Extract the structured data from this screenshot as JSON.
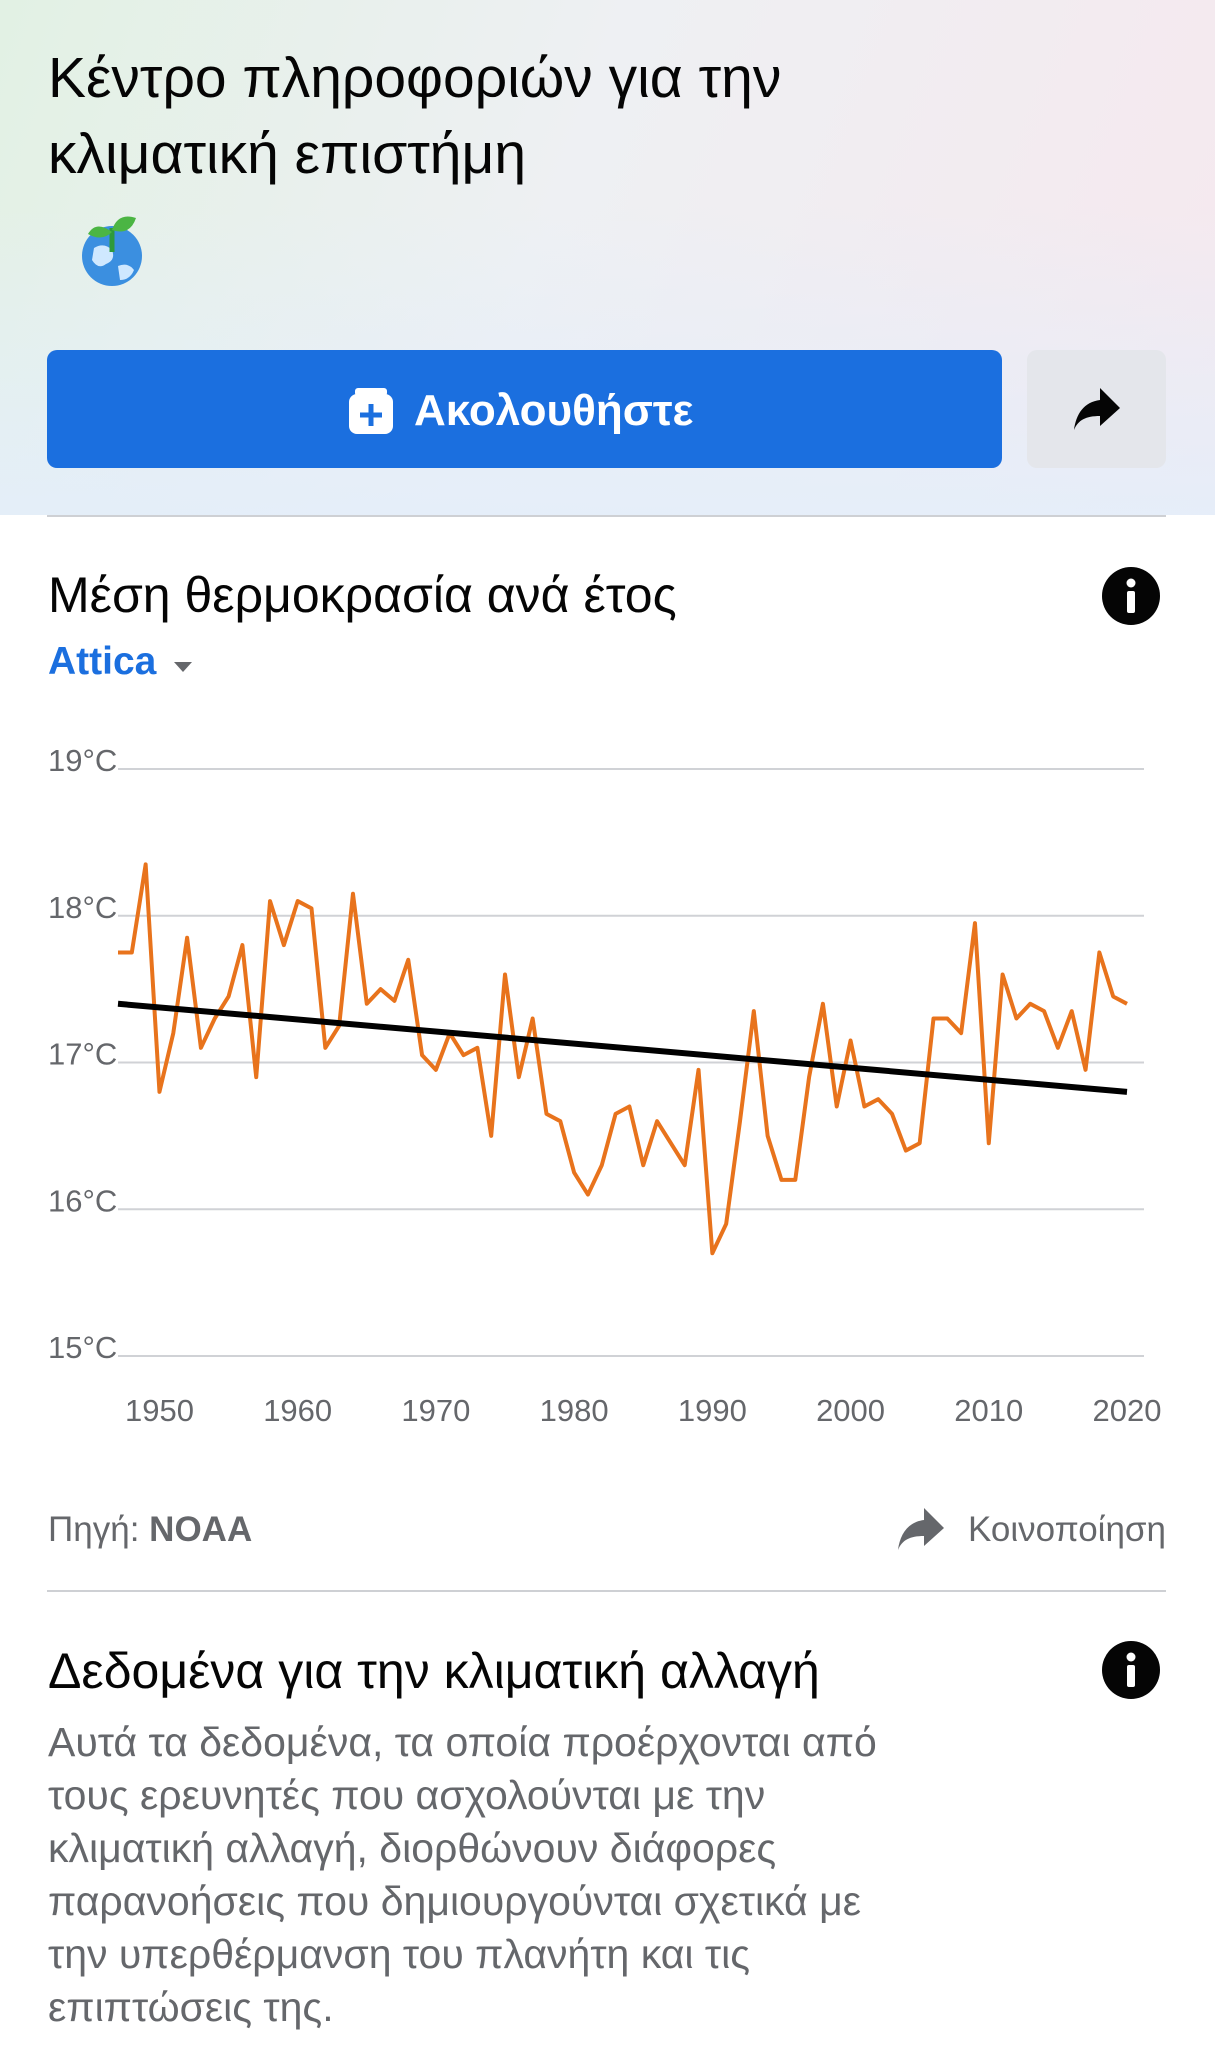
{
  "header": {
    "title_lines": [
      "Κέντρο πληροφοριών για την",
      "κλιματική επιστήμη"
    ],
    "follow_button": "Ακολουθήστε"
  },
  "card": {
    "title": "Μέση θερμοκρασία ανά έτος",
    "location": "Attica",
    "source_label": "Πηγή:",
    "source": "NOAA",
    "share": "Κοινοποίηση"
  },
  "chart_data": {
    "type": "line",
    "x": [
      1947,
      1948,
      1949,
      1950,
      1951,
      1952,
      1953,
      1954,
      1955,
      1956,
      1957,
      1958,
      1959,
      1960,
      1961,
      1962,
      1963,
      1964,
      1965,
      1966,
      1967,
      1968,
      1969,
      1970,
      1971,
      1972,
      1973,
      1974,
      1975,
      1976,
      1977,
      1978,
      1979,
      1980,
      1981,
      1982,
      1983,
      1984,
      1985,
      1986,
      1987,
      1988,
      1989,
      1990,
      1991,
      1992,
      1993,
      1994,
      1995,
      1996,
      1997,
      1998,
      1999,
      2000,
      2001,
      2002,
      2003,
      2004,
      2005,
      2006,
      2007,
      2008,
      2009,
      2010,
      2011,
      2012,
      2013,
      2014,
      2015,
      2016,
      2017,
      2018,
      2019,
      2020
    ],
    "series": [
      {
        "color": "#e8731c",
        "values": [
          17.75,
          17.75,
          18.35,
          16.8,
          17.2,
          17.85,
          17.1,
          17.3,
          17.45,
          17.8,
          16.9,
          18.1,
          17.8,
          18.1,
          18.05,
          17.1,
          17.25,
          18.15,
          17.4,
          17.5,
          17.42,
          17.7,
          17.05,
          16.95,
          17.2,
          17.05,
          17.1,
          16.5,
          17.6,
          16.9,
          17.3,
          16.65,
          16.6,
          16.25,
          16.1,
          16.3,
          16.65,
          16.7,
          16.3,
          16.6,
          16.45,
          16.3,
          16.95,
          15.7,
          15.9,
          16.6,
          17.35,
          16.5,
          16.2,
          16.2,
          16.9,
          17.4,
          16.7,
          17.15,
          16.7,
          16.75,
          16.65,
          16.4,
          16.45,
          17.3,
          17.3,
          17.2,
          17.95,
          16.45,
          17.6,
          17.3,
          17.4,
          17.35,
          17.1,
          17.35,
          16.95,
          17.75,
          17.45,
          17.4
        ]
      }
    ],
    "trend": {
      "color": "#000000",
      "x": [
        1947,
        2020
      ],
      "values": [
        17.4,
        16.8
      ]
    },
    "xlim": [
      1947,
      2020
    ],
    "xticks": [
      1950,
      1960,
      1970,
      1980,
      1990,
      2000,
      2010,
      2020
    ],
    "ylim": [
      15,
      19
    ],
    "yticks": [
      {
        "value": 15,
        "label": "15°C"
      },
      {
        "value": 16,
        "label": "16°C"
      },
      {
        "value": 17,
        "label": "17°C"
      },
      {
        "value": 18,
        "label": "18°C"
      },
      {
        "value": 19,
        "label": "19°C"
      }
    ],
    "grid": true
  },
  "facts": {
    "title": "Δεδομένα για την κλιματική αλλαγή",
    "lines": [
      "Αυτά τα δεδομένα, τα οποία προέρχονται από",
      "τους ερευνητές που ασχολούνται με την",
      "κλιματική αλλαγή, διορθώνουν διάφορες",
      "παρανοήσεις που δημιουργούνται σχετικά με",
      "την υπερθέρμανση του πλανήτη και τις",
      "επιπτώσεις της."
    ]
  }
}
